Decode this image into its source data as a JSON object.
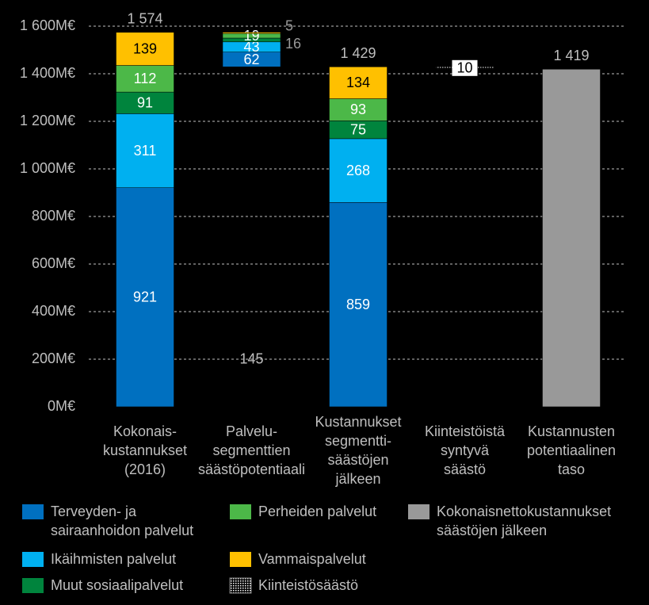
{
  "chart_data": {
    "type": "waterfall",
    "categories": [
      "Kokonais-\nkustannukset\n(2016)",
      "Palvelu-\nsegmenttien\nsäästöpotentiaali",
      "Kustannukset\nsegmentti-\nsäästöjen\njälkeen",
      "Kiinteistöistä\nsyntyvä\nsäästö",
      "Kustannusten\npotentiaalinen\ntaso"
    ],
    "measure": [
      "absolute",
      "relative",
      "absolute",
      "relative",
      "absolute"
    ],
    "series": [
      {
        "name": "Terveyden- ja\nsairaanhoidon palvelut",
        "color": "#0070c0",
        "values": [
          921,
          62,
          859,
          null,
          null
        ]
      },
      {
        "name": "Ikäihmisten palvelut",
        "color": "#00b0f0",
        "values": [
          311,
          43,
          268,
          null,
          null
        ]
      },
      {
        "name": "Muut sosiaalipalvelut",
        "color": "#00843d",
        "values": [
          91,
          16,
          75,
          null,
          null
        ]
      },
      {
        "name": "Perheiden palvelut",
        "color": "#4cb848",
        "values": [
          112,
          19,
          93,
          null,
          null
        ]
      },
      {
        "name": "Vammaispalvelut",
        "color": "#ffc000",
        "values": [
          139,
          5,
          134,
          null,
          null
        ]
      },
      {
        "name": "Kokonaisnettokustannukset\nsäästöjen jälkeen",
        "color": "#999999",
        "values": [
          null,
          null,
          null,
          null,
          1419
        ]
      },
      {
        "name": "Kiinteistösäästö",
        "color": "dotted",
        "values": [
          null,
          null,
          null,
          10,
          null
        ]
      }
    ],
    "total_values": [
      1574,
      145,
      1429,
      null,
      1419
    ],
    "total_labels": [
      "1 574",
      "145",
      "1 429",
      null,
      "1 419"
    ],
    "ylim": [
      0,
      1600
    ],
    "yticks": [
      {
        "value": 0,
        "label": "0M€"
      },
      {
        "value": 200,
        "label": "200M€"
      },
      {
        "value": 400,
        "label": "400M€"
      },
      {
        "value": 600,
        "label": "600M€"
      },
      {
        "value": 800,
        "label": "800M€"
      },
      {
        "value": 1000,
        "label": "1 000M€"
      },
      {
        "value": 1200,
        "label": "1 200M€"
      },
      {
        "value": 1400,
        "label": "1 400M€"
      },
      {
        "value": 1600,
        "label": "1 600M€"
      }
    ],
    "grid": true
  }
}
